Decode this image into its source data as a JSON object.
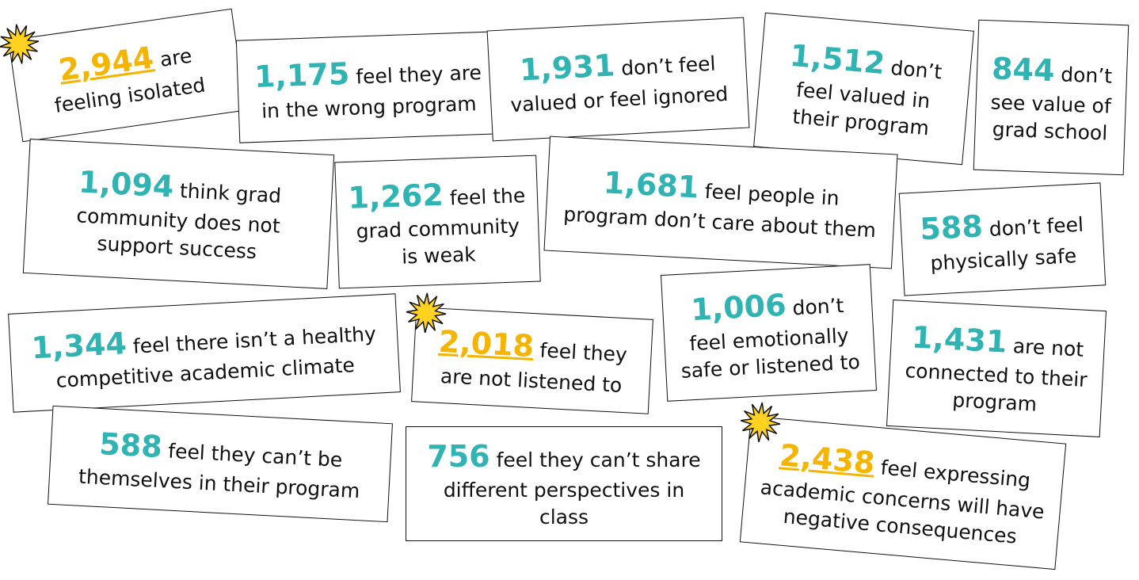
{
  "cards": [
    {
      "number": "2,944",
      "text": "are feeling isolated",
      "highlight": true
    },
    {
      "number": "1,175",
      "text": "feel they are in the wrong program",
      "highlight": false
    },
    {
      "number": "1,931",
      "text": "don’t feel valued or feel ignored",
      "highlight": false
    },
    {
      "number": "1,512",
      "text": "don’t feel valued in their program",
      "highlight": false
    },
    {
      "number": "844",
      "text": "don’t see value of grad school",
      "highlight": false
    },
    {
      "number": "1,094",
      "text": "think grad community does not support success",
      "highlight": false
    },
    {
      "number": "1,262",
      "text": "feel the grad community is weak",
      "highlight": false
    },
    {
      "number": "1,681",
      "text": "feel people in program don’t care about them",
      "highlight": false
    },
    {
      "number": "588",
      "text": "don’t feel physically safe",
      "highlight": false
    },
    {
      "number": "1,344",
      "text": "feel there isn’t a healthy competitive academic climate",
      "highlight": false
    },
    {
      "number": "2,018",
      "text": "feel they are not listened to",
      "highlight": true
    },
    {
      "number": "1,006",
      "text": "don’t feel emotionally safe or listened to",
      "highlight": false
    },
    {
      "number": "1,431",
      "text": "are not connected to their program",
      "highlight": false
    },
    {
      "number": "588",
      "text": "feel they can’t be themselves in their program",
      "highlight": false
    },
    {
      "number": "756",
      "text": "feel they can’t share different perspectives in class",
      "highlight": false
    },
    {
      "number": "2,438",
      "text": "feel expressing academic concerns will have negative consequences",
      "highlight": true
    }
  ]
}
